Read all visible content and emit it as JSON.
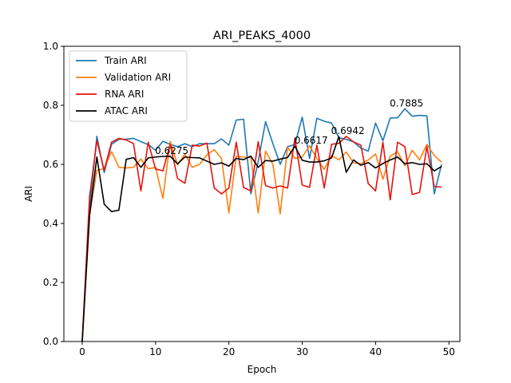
{
  "chart_data": {
    "type": "line",
    "title": "ARI_PEAKS_4000",
    "xlabel": "Epoch",
    "ylabel": "ARI",
    "xlim": [
      -2.5,
      51.5
    ],
    "ylim": [
      0,
      1
    ],
    "xticks": [
      0,
      10,
      20,
      30,
      40,
      50
    ],
    "yticks": [
      0.0,
      0.2,
      0.4,
      0.6,
      0.8,
      1.0
    ],
    "xtick_labels": [
      "0",
      "10",
      "20",
      "30",
      "40",
      "50"
    ],
    "ytick_labels": [
      "0.0",
      "0.2",
      "0.4",
      "0.6",
      "0.8",
      "1.0"
    ],
    "grid": false,
    "legend_position": "upper-left",
    "x": [
      0,
      1,
      2,
      3,
      4,
      5,
      6,
      7,
      8,
      9,
      10,
      11,
      12,
      13,
      14,
      15,
      16,
      17,
      18,
      19,
      20,
      21,
      22,
      23,
      24,
      25,
      26,
      27,
      28,
      29,
      30,
      31,
      32,
      33,
      34,
      35,
      36,
      37,
      38,
      39,
      40,
      41,
      42,
      43,
      44,
      45,
      46,
      47,
      48,
      49
    ],
    "series": [
      {
        "name": "Train ARI",
        "color": "#1f77b4",
        "values": [
          0.0,
          0.45,
          0.695,
          0.572,
          0.668,
          0.685,
          0.685,
          0.688,
          0.677,
          0.667,
          0.648,
          0.678,
          0.668,
          0.66,
          0.67,
          0.66,
          0.67,
          0.67,
          0.67,
          0.686,
          0.665,
          0.75,
          0.753,
          0.5,
          0.61,
          0.745,
          0.67,
          0.6,
          0.66,
          0.667,
          0.76,
          0.62,
          0.756,
          0.746,
          0.74,
          0.69,
          0.685,
          0.676,
          0.655,
          0.645,
          0.74,
          0.68,
          0.757,
          0.758,
          0.7885,
          0.763,
          0.766,
          0.764,
          0.5,
          0.6
        ]
      },
      {
        "name": "Validation ARI",
        "color": "#ff7f0e",
        "values": [
          0.0,
          0.43,
          0.58,
          0.585,
          0.643,
          0.59,
          0.588,
          0.59,
          0.618,
          0.585,
          0.59,
          0.485,
          0.678,
          0.598,
          0.635,
          0.59,
          0.6,
          0.632,
          0.65,
          0.62,
          0.435,
          0.628,
          0.625,
          0.623,
          0.435,
          0.645,
          0.6,
          0.432,
          0.658,
          0.62,
          0.625,
          0.663,
          0.62,
          0.583,
          0.63,
          0.615,
          0.642,
          0.605,
          0.602,
          0.615,
          0.635,
          0.55,
          0.628,
          0.643,
          0.595,
          0.648,
          0.615,
          0.668,
          0.63,
          0.607
        ]
      },
      {
        "name": "RNA ARI",
        "color": "#e8120c",
        "values": [
          0.0,
          0.49,
          0.68,
          0.58,
          0.675,
          0.688,
          0.683,
          0.67,
          0.51,
          0.675,
          0.585,
          0.578,
          0.668,
          0.552,
          0.536,
          0.665,
          0.662,
          0.672,
          0.52,
          0.5,
          0.52,
          0.675,
          0.522,
          0.51,
          0.677,
          0.528,
          0.52,
          0.527,
          0.52,
          0.689,
          0.53,
          0.522,
          0.665,
          0.52,
          0.668,
          0.671,
          0.695,
          0.676,
          0.665,
          0.535,
          0.51,
          0.675,
          0.48,
          0.675,
          0.66,
          0.498,
          0.505,
          0.66,
          0.525,
          0.523
        ]
      },
      {
        "name": "ATAC ARI",
        "color": "#000000",
        "values": [
          0.0,
          0.425,
          0.625,
          0.465,
          0.44,
          0.445,
          0.617,
          0.623,
          0.59,
          0.622,
          0.625,
          0.627,
          0.6275,
          0.602,
          0.625,
          0.623,
          0.622,
          0.611,
          0.6,
          0.605,
          0.594,
          0.62,
          0.616,
          0.628,
          0.59,
          0.613,
          0.611,
          0.618,
          0.623,
          0.6617,
          0.614,
          0.608,
          0.608,
          0.612,
          0.622,
          0.6942,
          0.573,
          0.615,
          0.597,
          0.606,
          0.588,
          0.603,
          0.615,
          0.625,
          0.602,
          0.606,
          0.6,
          0.602,
          0.578,
          0.593
        ]
      }
    ],
    "annotations": [
      {
        "text": "0.6275",
        "x": 12,
        "y": 0.6275
      },
      {
        "text": "0.6617",
        "x": 31,
        "y": 0.6617
      },
      {
        "text": "0.6942",
        "x": 36,
        "y": 0.6942
      },
      {
        "text": "0.7885",
        "x": 44,
        "y": 0.7885
      }
    ]
  }
}
